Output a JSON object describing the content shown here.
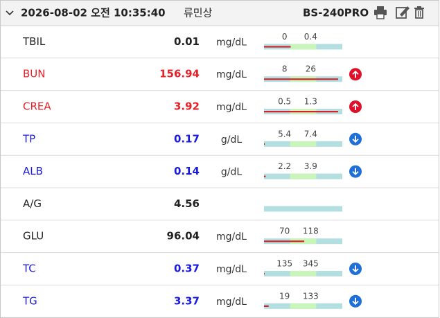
{
  "header": {
    "datetime": "2026-08-02 오전 10:35:40",
    "patient": "류민상",
    "device": "BS-240PRO"
  },
  "rows": [
    {
      "name": "TBIL",
      "value": 0.01,
      "unit": "mg/dL",
      "low": 0,
      "high": 0.4
    },
    {
      "name": "BUN",
      "value": 156.94,
      "unit": "mg/dL",
      "low": 8,
      "high": 26
    },
    {
      "name": "CREA",
      "value": 3.92,
      "unit": "mg/dL",
      "low": 0.5,
      "high": 1.3
    },
    {
      "name": "TP",
      "value": 0.17,
      "unit": "g/dL",
      "low": 5.4,
      "high": 7.4
    },
    {
      "name": "ALB",
      "value": 0.14,
      "unit": "g/dL",
      "low": 2.2,
      "high": 3.9
    },
    {
      "name": "A/G",
      "value": 4.56
    },
    {
      "name": "GLU",
      "value": 96.04,
      "unit": "mg/dL",
      "low": 70,
      "high": 118
    },
    {
      "name": "TC",
      "value": 0.37,
      "unit": "mg/dL",
      "low": 135,
      "high": 345
    },
    {
      "name": "TG",
      "value": 3.37,
      "unit": "mg/dL",
      "low": 19,
      "high": 133
    }
  ]
}
